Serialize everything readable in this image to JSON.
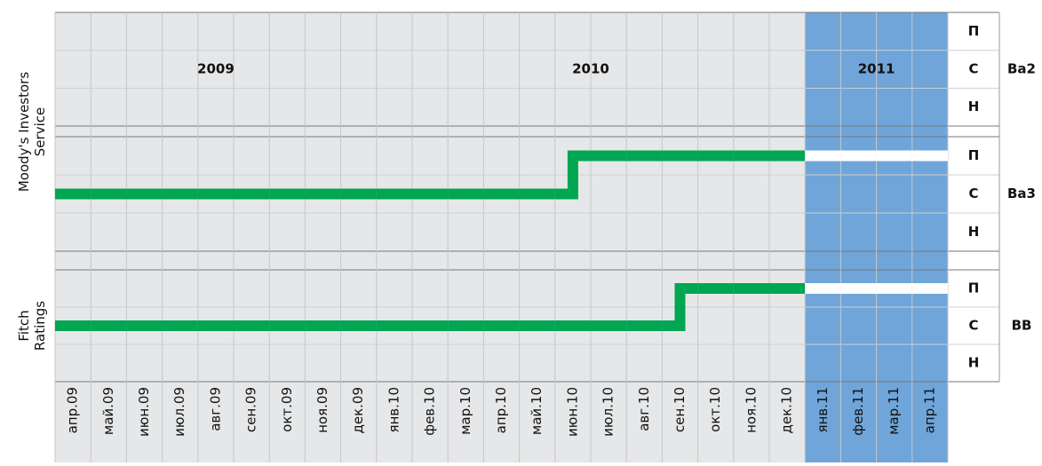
{
  "agencies": [
    [
      "Moody's Investors",
      "Service"
    ],
    [
      "Fitch",
      "Ratings"
    ]
  ],
  "ratings": [
    "Ba2",
    "Ba3",
    "BB"
  ],
  "levels": [
    "П",
    "С",
    "Н"
  ],
  "years": [
    {
      "label": "2009",
      "months": 9
    },
    {
      "label": "2010",
      "months": 12
    },
    {
      "label": "2011",
      "months": 4,
      "highlight": true
    }
  ],
  "months": [
    "апр.09",
    "май.09",
    "июн.09",
    "июл.09",
    "авг.09",
    "сен.09",
    "окт.09",
    "ноя.09",
    "дек.09",
    "янв.10",
    "фев.10",
    "мар.10",
    "апр.10",
    "май.10",
    "июн.10",
    "июл.10",
    "авг.10",
    "сен.10",
    "окт.10",
    "ноя.10",
    "дек.10",
    "янв.11",
    "фев.11",
    "мар.11",
    "апр.11"
  ],
  "lines": [
    [
      "С",
      "С",
      "С",
      "С",
      "С",
      "С",
      "С",
      "С",
      "С",
      "С",
      "С",
      "С",
      "С",
      "С",
      "П",
      "П",
      "П",
      "П",
      "П",
      "П",
      "П",
      "П",
      "П",
      "П",
      "П"
    ],
    [
      "С",
      "С",
      "С",
      "С",
      "С",
      "С",
      "С",
      "С",
      "С",
      "С",
      "С",
      "С",
      "С",
      "С",
      "С",
      "С",
      "С",
      "П",
      "П",
      "П",
      "П",
      "П",
      "П",
      "П",
      "П"
    ]
  ],
  "colors": {
    "background": "#e6e7e8",
    "highlight": "#6fa5d9",
    "line": "#00a651",
    "highlight_line": "#ffffff"
  }
}
